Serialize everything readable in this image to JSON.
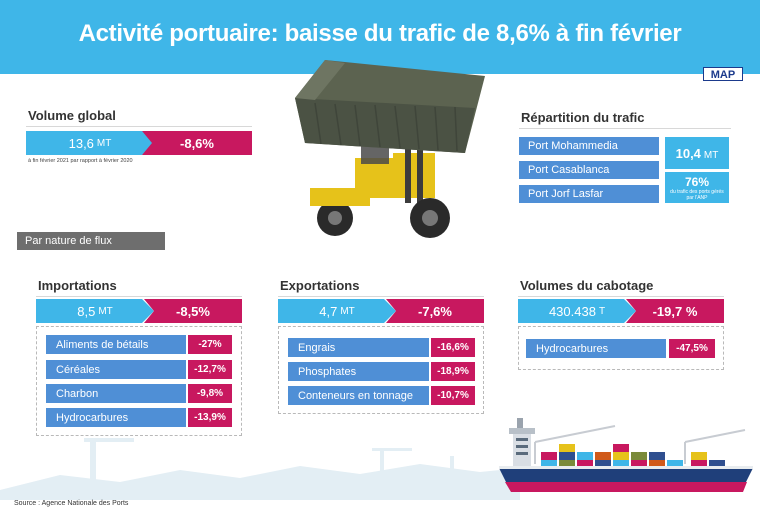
{
  "title": "Activité portuaire: baisse du trafic de 8,6% à fin février",
  "logo": "MAP",
  "volume_global": {
    "title": "Volume global",
    "value": "13,6",
    "unit": "MT",
    "change": "-8,6%",
    "note": "à fin février 2021 par rapport à février 2020"
  },
  "repartition": {
    "title": "Répartition du trafic",
    "ports": [
      "Port Mohammedia",
      "Port Casablanca",
      "Port Jorf Lasfar"
    ],
    "value": "10,4",
    "unit": "MT",
    "share": "76%",
    "share_note": "du trafic des ports gérés par l'ANP"
  },
  "flux_label": "Par nature de flux",
  "importations": {
    "title": "Importations",
    "value": "8,5",
    "unit": "MT",
    "change": "-8,5%",
    "rows": [
      {
        "label": "Aliments de bétails",
        "value": "-27%"
      },
      {
        "label": "Céréales",
        "value": "-12,7%"
      },
      {
        "label": "Charbon",
        "value": "-9,8%"
      },
      {
        "label": "Hydrocarbures",
        "value": "-13,9%"
      }
    ]
  },
  "exportations": {
    "title": "Exportations",
    "value": "4,7",
    "unit": "MT",
    "change": "-7,6%",
    "rows": [
      {
        "label": "Engrais",
        "value": "-16,6%"
      },
      {
        "label": "Phosphates",
        "value": "-18,9%"
      },
      {
        "label": "Conteneurs en tonnage",
        "value": "-10,7%"
      }
    ]
  },
  "cabotage": {
    "title": "Volumes du cabotage",
    "value": "430.438",
    "unit": "T",
    "change": "-19,7 %",
    "rows": [
      {
        "label": "Hydrocarbures",
        "value": "-47,5%"
      }
    ]
  },
  "source": "Source : Agence Nationale des Ports",
  "colors": {
    "header": "#3fb6e8",
    "blue": "#3fb6e8",
    "row_blue": "#4f8fd6",
    "pink": "#c8185f",
    "flux_bar": "#6e6e6e"
  }
}
